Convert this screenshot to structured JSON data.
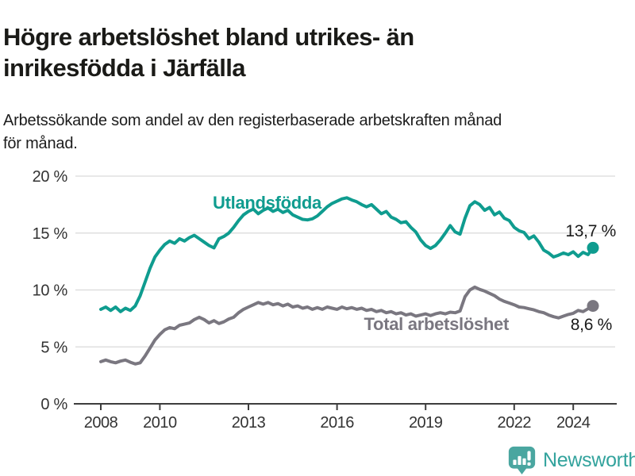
{
  "header": {
    "title": "Högre arbetslöshet bland utrikes- än\ninrikesfödda i Järfälla",
    "subtitle": "Arbetssökande som andel av den registerbaserade arbetskraften månad\nför månad."
  },
  "footer": {
    "brand": "Newsworthy",
    "brand_color": "#33a39d",
    "icon_color": "#4aa6a0",
    "icon": "newsworthy-logo"
  },
  "chart_data": {
    "type": "line",
    "title": "Högre arbetslöshet bland utrikes- än inrikesfödda i Järfälla",
    "subtitle": "Arbetssökande som andel av den registerbaserade arbetskraften månad för månad.",
    "grid": true,
    "legend_position": "inline-labels",
    "x_axis": {
      "unit": "year",
      "range_start": 2008.0,
      "range_end": 2024.67,
      "tick_values": [
        2008,
        2010,
        2013,
        2016,
        2019,
        2022,
        2024
      ],
      "tick_labels": [
        "2008",
        "2010",
        "2013",
        "2016",
        "2019",
        "2022",
        "2024"
      ]
    },
    "y_axis": {
      "unit": "%",
      "range": [
        0,
        20
      ],
      "tick_values": [
        0,
        5,
        10,
        15,
        20
      ],
      "tick_labels": [
        "0 %",
        "5 %",
        "10 %",
        "15 %",
        "20 %"
      ]
    },
    "x_start": 2008.0,
    "x_step_years": 0.1666667,
    "end_label_color": "#1a1a1a",
    "series": [
      {
        "name": "Utlandsfödda",
        "color": "#0f9c8f",
        "end_value": 13.7,
        "end_label": "13,7 %",
        "values": [
          8.3,
          8.5,
          8.2,
          8.5,
          8.1,
          8.4,
          8.2,
          8.6,
          9.5,
          10.7,
          11.9,
          12.9,
          13.5,
          14.0,
          14.3,
          14.1,
          14.5,
          14.3,
          14.6,
          14.8,
          14.5,
          14.2,
          13.9,
          13.7,
          14.5,
          14.7,
          15.0,
          15.5,
          16.1,
          16.6,
          16.9,
          17.1,
          16.7,
          17.0,
          17.2,
          16.9,
          17.1,
          16.8,
          17.0,
          16.6,
          16.4,
          16.2,
          16.15,
          16.25,
          16.5,
          16.9,
          17.3,
          17.6,
          17.8,
          18.0,
          18.1,
          17.9,
          17.75,
          17.5,
          17.3,
          17.5,
          17.1,
          16.7,
          16.9,
          16.4,
          16.2,
          15.9,
          16.0,
          15.5,
          15.1,
          14.4,
          13.9,
          13.65,
          13.9,
          14.4,
          15.0,
          15.65,
          15.1,
          14.9,
          16.3,
          17.4,
          17.75,
          17.5,
          17.0,
          17.25,
          16.6,
          16.85,
          16.3,
          16.1,
          15.5,
          15.2,
          15.05,
          14.5,
          14.75,
          14.2,
          13.5,
          13.25,
          12.9,
          13.05,
          13.25,
          13.1,
          13.35,
          12.95,
          13.3,
          13.1,
          13.7
        ]
      },
      {
        "name": "Total arbetslöshet",
        "color": "#7a7780",
        "end_value": 8.6,
        "end_label": "8,6 %",
        "values": [
          3.7,
          3.85,
          3.7,
          3.6,
          3.75,
          3.85,
          3.65,
          3.5,
          3.6,
          4.2,
          4.9,
          5.6,
          6.1,
          6.5,
          6.7,
          6.6,
          6.9,
          7.0,
          7.1,
          7.4,
          7.6,
          7.4,
          7.1,
          7.3,
          7.05,
          7.2,
          7.45,
          7.6,
          8.0,
          8.3,
          8.5,
          8.7,
          8.9,
          8.75,
          8.9,
          8.7,
          8.8,
          8.6,
          8.75,
          8.5,
          8.6,
          8.4,
          8.5,
          8.3,
          8.45,
          8.3,
          8.5,
          8.4,
          8.3,
          8.5,
          8.35,
          8.45,
          8.3,
          8.4,
          8.2,
          8.3,
          8.1,
          8.2,
          8.0,
          8.1,
          7.9,
          8.0,
          7.8,
          7.9,
          7.7,
          7.8,
          7.9,
          7.75,
          7.9,
          8.0,
          7.9,
          8.05,
          8.0,
          8.15,
          9.4,
          10.0,
          10.25,
          10.05,
          9.9,
          9.7,
          9.5,
          9.2,
          9.0,
          8.85,
          8.7,
          8.5,
          8.45,
          8.35,
          8.25,
          8.1,
          8.0,
          7.8,
          7.65,
          7.55,
          7.7,
          7.85,
          7.95,
          8.2,
          8.1,
          8.35,
          8.6
        ]
      }
    ]
  }
}
